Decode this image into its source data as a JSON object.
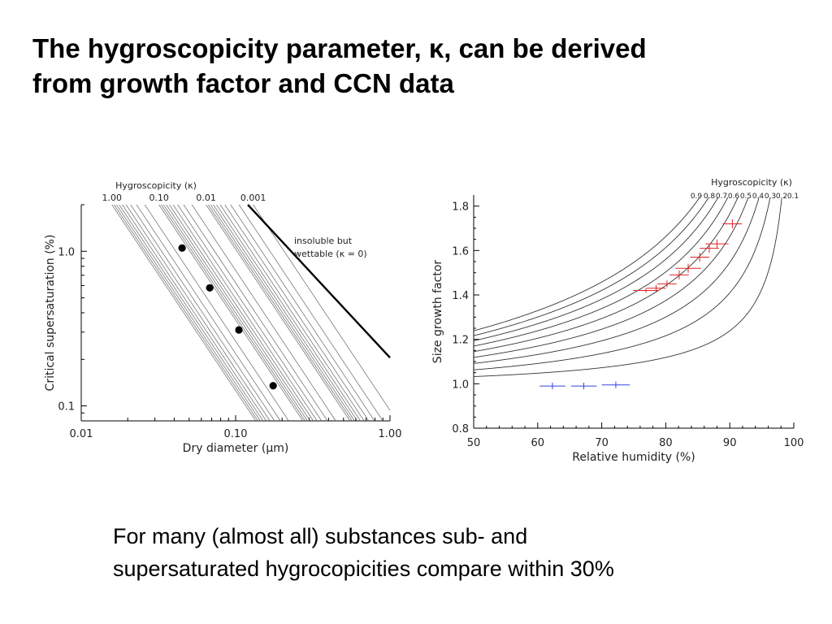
{
  "title": {
    "line1": "The hygroscopicity parameter, κ, can be derived",
    "line2": "from growth factor and CCN data"
  },
  "caption": {
    "line1": "For many (almost all) substances sub- and",
    "line2": "supersaturated hygrocopicities compare within 30%"
  },
  "colors": {
    "ink": "#000000",
    "model_curve": "#555555",
    "red_points": "#e02020",
    "blue_points": "#3344dd"
  },
  "chart_data": [
    {
      "type": "line",
      "xlabel": "Dry diameter (μm)",
      "ylabel": "Critical supersaturation (%)",
      "x_scale": "log",
      "y_scale": "log",
      "xlim": [
        0.01,
        1.0
      ],
      "ylim": [
        0.08,
        2.0
      ],
      "x_ticks": [
        "0.01",
        "0.10",
        "1.00"
      ],
      "y_ticks": [
        "0.1",
        "1.0"
      ],
      "top_axis": {
        "label": "Hygroscopicity (κ)",
        "ticks": [
          "1.00",
          "0.10",
          "0.01",
          "0.001"
        ]
      },
      "series": [
        {
          "kappa": [
            1.0,
            0.9,
            0.8,
            0.7,
            0.6,
            0.5,
            0.4,
            0.3,
            0.2,
            0.1,
            0.09,
            0.08,
            0.07,
            0.06,
            0.05,
            0.04,
            0.03,
            0.02,
            0.01,
            0.009,
            0.008,
            0.007,
            0.006,
            0.005,
            0.004,
            0.003,
            0.002,
            0.001
          ]
        },
        {
          "label": "insoluble but wettable (κ = 0)",
          "points": [
            [
              0.12,
              2.0
            ],
            [
              1.0,
              0.205
            ]
          ]
        }
      ],
      "measured_points": [
        {
          "x": 0.045,
          "y": 1.05
        },
        {
          "x": 0.068,
          "y": 0.58
        },
        {
          "x": 0.105,
          "y": 0.31
        },
        {
          "x": 0.175,
          "y": 0.135
        }
      ],
      "grid": false
    },
    {
      "type": "line",
      "xlabel": "Relative humidity (%)",
      "ylabel": "Size growth factor",
      "xlim": [
        50,
        100
      ],
      "ylim": [
        0.8,
        1.85
      ],
      "x_ticks": [
        "50",
        "60",
        "70",
        "80",
        "90",
        "100"
      ],
      "y_ticks": [
        "0.8",
        "1.0",
        "1.2",
        "1.4",
        "1.6",
        "1.8"
      ],
      "top_axis": {
        "label": "Hygroscopicity (κ)",
        "ticks": [
          "0.9",
          "0.8",
          "0.7",
          "0.6",
          "0.5",
          "0.4",
          "0.3",
          "0.2",
          "0.1"
        ]
      },
      "series": [
        {
          "kappa": [
            0.9,
            0.8,
            0.7,
            0.6,
            0.5,
            0.4,
            0.3,
            0.2,
            0.1
          ]
        }
      ],
      "measured_points": {
        "red": [
          {
            "rh": 76.9,
            "gf": 1.42,
            "xerr": 2.0,
            "yerr": 0.01
          },
          {
            "rh": 78.5,
            "gf": 1.43,
            "xerr": 1.5,
            "yerr": 0.015
          },
          {
            "rh": 80.2,
            "gf": 1.45,
            "xerr": 1.5,
            "yerr": 0.015
          },
          {
            "rh": 82.1,
            "gf": 1.49,
            "xerr": 1.5,
            "yerr": 0.02
          },
          {
            "rh": 83.5,
            "gf": 1.52,
            "xerr": 2.0,
            "yerr": 0.02
          },
          {
            "rh": 85.3,
            "gf": 1.57,
            "xerr": 1.5,
            "yerr": 0.02
          },
          {
            "rh": 86.8,
            "gf": 1.61,
            "xerr": 1.5,
            "yerr": 0.02
          },
          {
            "rh": 88.0,
            "gf": 1.63,
            "xerr": 1.8,
            "yerr": 0.02
          },
          {
            "rh": 90.4,
            "gf": 1.72,
            "xerr": 1.5,
            "yerr": 0.02
          }
        ],
        "blue": [
          {
            "rh": 62.3,
            "gf": 0.99,
            "xerr": 2.0,
            "yerr": 0.015
          },
          {
            "rh": 67.2,
            "gf": 0.99,
            "xerr": 2.0,
            "yerr": 0.015
          },
          {
            "rh": 72.2,
            "gf": 0.995,
            "xerr": 2.2,
            "yerr": 0.015
          }
        ]
      },
      "grid": false
    }
  ]
}
